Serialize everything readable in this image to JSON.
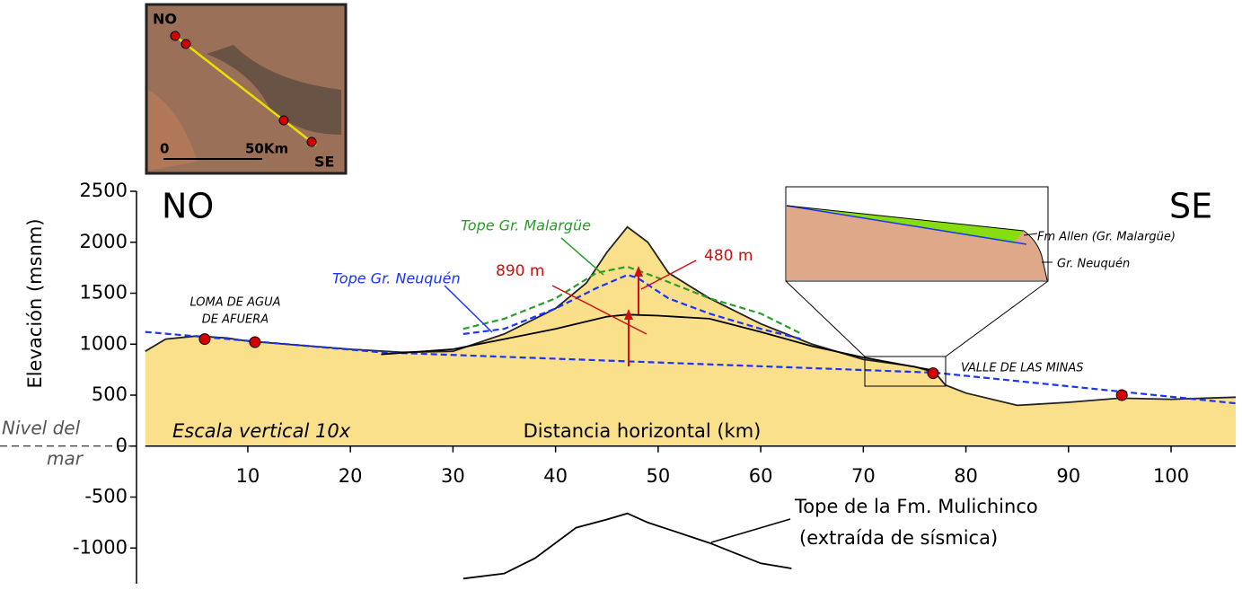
{
  "chart_data": {
    "type": "line",
    "ylabel": "Elevación (msnm)",
    "xlabel": "Distancia horizontal (km)",
    "xlim": [
      0,
      106.3
    ],
    "ylim": [
      -1350,
      2500
    ],
    "xticks": [
      10,
      20,
      30,
      40,
      50,
      60,
      70,
      80,
      90,
      100
    ],
    "yticks": [
      2500,
      2000,
      1500,
      1000,
      500,
      0,
      -500,
      -1000
    ],
    "fill_color": "#fbe08c",
    "series": [
      {
        "color": "#222222",
        "style": "solid",
        "fill": true,
        "x": [
          0,
          2,
          5,
          8,
          10,
          15,
          20,
          25,
          30,
          35,
          40,
          43,
          45,
          47,
          49,
          51,
          55,
          60,
          65,
          70,
          75,
          77,
          78,
          80,
          85,
          90,
          95,
          100,
          106.3
        ],
        "values": [
          930,
          1050,
          1080,
          1060,
          1030,
          990,
          950,
          920,
          930,
          1100,
          1350,
          1600,
          1900,
          2150,
          2000,
          1700,
          1450,
          1200,
          1000,
          850,
          780,
          720,
          600,
          520,
          400,
          430,
          470,
          460,
          480
        ]
      },
      {
        "color": "#1a33ff",
        "style": "dashed",
        "x": [
          0,
          23,
          77,
          106.3,
          null,
          31,
          35,
          40,
          44,
          47,
          48,
          51,
          55,
          60,
          64
        ],
        "values": [
          1120,
          920,
          720,
          420,
          null,
          1100,
          1150,
          1350,
          1550,
          1680,
          1650,
          1450,
          1300,
          1150,
          1050
        ]
      },
      {
        "color": "#2a9d2a",
        "style": "dashed",
        "x": [
          31,
          35,
          40,
          44,
          47,
          50,
          55,
          60,
          64
        ],
        "values": [
          1150,
          1250,
          1450,
          1700,
          1760,
          1650,
          1450,
          1300,
          1100
        ]
      },
      {
        "color": "#000000",
        "style": "solid",
        "x": [
          23,
          30,
          35,
          40,
          45,
          47,
          50,
          55,
          60,
          65,
          70,
          77
        ],
        "values": [
          900,
          950,
          1050,
          1150,
          1270,
          1290,
          1280,
          1250,
          1120,
          980,
          870,
          740
        ]
      },
      {
        "color": "#000000",
        "style": "solid",
        "x": [
          31,
          35,
          38,
          42,
          45,
          47,
          49,
          52,
          55,
          60,
          63
        ],
        "values": [
          -1300,
          -1250,
          -1100,
          -800,
          -720,
          -660,
          -750,
          -850,
          -950,
          -1150,
          -1200
        ]
      }
    ],
    "points": {
      "color": "#d40000",
      "x": [
        5.8,
        10.7,
        76.8,
        95.2
      ],
      "values": [
        1050,
        1020,
        715,
        500
      ]
    },
    "annotations": [
      "NO",
      "SE",
      "LOMA DE AGUA",
      "DE AFUERA",
      "VALLE DE LAS MINAS",
      "Escala vertical 10x",
      "Nivel del",
      "mar",
      "Tope Gr. Malargüe",
      "Tope Gr. Neuquén",
      "890 m",
      "480 m",
      "Tope de la Fm. Mulichinco",
      "(extraída de sísmica)"
    ],
    "map": {
      "labels": [
        "NO",
        "SE",
        "0",
        "50Km"
      ]
    },
    "zoom": {
      "labels": [
        "Fm Allen (Gr. Malargüe)",
        "Gr. Neuquén"
      ]
    }
  }
}
